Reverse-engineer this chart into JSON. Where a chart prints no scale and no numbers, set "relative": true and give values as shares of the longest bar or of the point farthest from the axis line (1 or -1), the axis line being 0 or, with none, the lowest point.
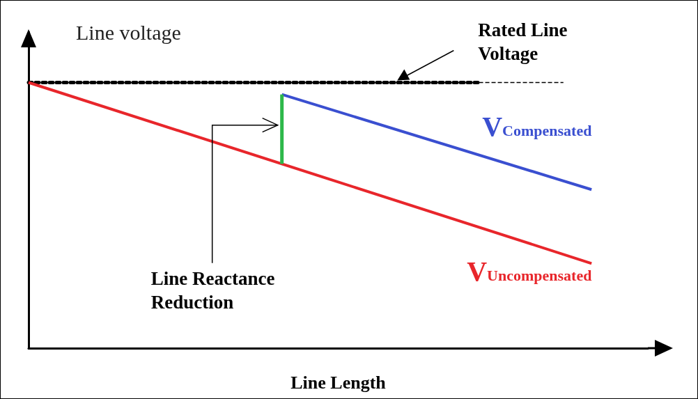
{
  "chart_data": {
    "type": "line",
    "relative": true,
    "xlabel": "Line Length",
    "ylabel": "Line voltage",
    "grid": false,
    "legend": false,
    "marker": "none",
    "categories": [
      null,
      null,
      null,
      null,
      null,
      null,
      null,
      null,
      null,
      null,
      null,
      null,
      null,
      null,
      null,
      null,
      null,
      null,
      null,
      null,
      null,
      null,
      null
    ],
    "series": [
      {
        "color": "#000000",
        "values": [
          1,
          null,
          null,
          null,
          null,
          null,
          null,
          null,
          null,
          null,
          null,
          null,
          null,
          null,
          null,
          null,
          1,
          null,
          null,
          null,
          null,
          null,
          null
        ],
        "line_style": "dotted"
      },
      {
        "color": "#000000",
        "values": [
          null,
          null,
          null,
          null,
          null,
          null,
          null,
          null,
          null,
          null,
          null,
          null,
          null,
          null,
          null,
          null,
          1,
          null,
          null,
          1,
          null,
          null,
          null
        ],
        "line_style": "dashed"
      },
      {
        "name": "V$_{Uncompensated}$",
        "color": "#e8262b",
        "values": [
          1,
          null,
          null,
          null,
          null,
          null,
          null,
          null,
          null,
          null,
          null,
          null,
          null,
          null,
          null,
          null,
          null,
          null,
          null,
          null,
          0.319,
          null,
          null
        ],
        "line_style": "solid"
      },
      {
        "name": "V$_{Compensated}$",
        "color": "#3a4fd0",
        "values": [
          null,
          null,
          null,
          null,
          null,
          null,
          null,
          null,
          null,
          0.955,
          null,
          null,
          null,
          null,
          null,
          null,
          null,
          null,
          null,
          null,
          0.597,
          null,
          null
        ],
        "line_style": "solid"
      }
    ],
    "annotations": [
      "Rated Line\nVoltage",
      "Line Reactance\nReduction"
    ]
  }
}
